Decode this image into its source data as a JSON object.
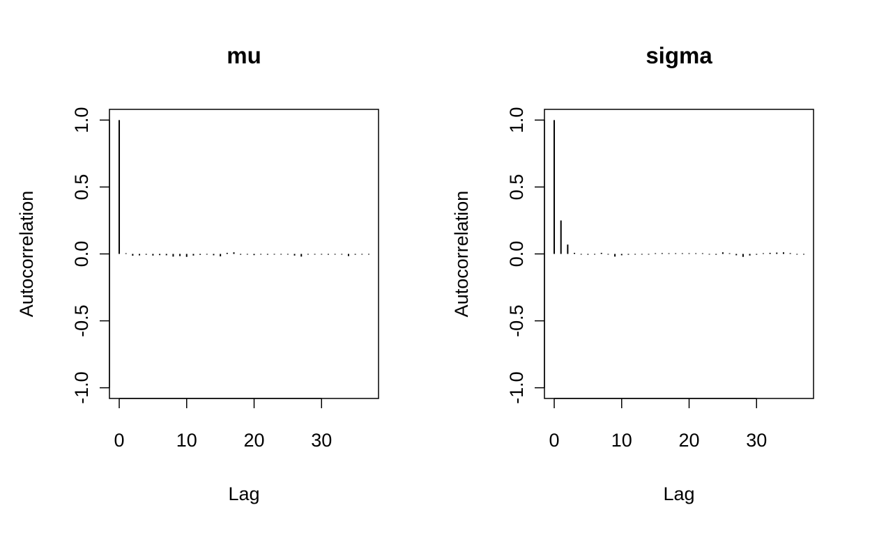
{
  "chart_data": [
    {
      "type": "bar",
      "title": "mu",
      "xlabel": "Lag",
      "ylabel": "Autocorrelation",
      "xlim": [
        -1.45,
        38.45
      ],
      "ylim": [
        -1.08,
        1.08
      ],
      "xticks": [
        0,
        10,
        20,
        30
      ],
      "xtick_labels": [
        "0",
        "10",
        "20",
        "30"
      ],
      "yticks": [
        -1.0,
        -0.5,
        0.0,
        0.5,
        1.0
      ],
      "ytick_labels": [
        "-1.0",
        "-0.5",
        "0.0",
        "0.5",
        "1.0"
      ],
      "grid": false,
      "lags": [
        0,
        1,
        2,
        3,
        4,
        5,
        6,
        7,
        8,
        9,
        10,
        11,
        12,
        13,
        14,
        15,
        16,
        17,
        18,
        19,
        20,
        21,
        22,
        23,
        24,
        25,
        26,
        27,
        28,
        29,
        30,
        31,
        32,
        33,
        34,
        35,
        36,
        37
      ],
      "values": [
        1.0,
        0.004,
        -0.013,
        -0.011,
        -0.006,
        -0.012,
        -0.009,
        -0.01,
        -0.02,
        -0.016,
        -0.022,
        -0.012,
        -0.007,
        -0.005,
        -0.01,
        -0.018,
        0.008,
        0.012,
        -0.006,
        -0.005,
        -0.009,
        -0.004,
        -0.006,
        -0.003,
        -0.005,
        -0.002,
        -0.012,
        -0.02,
        -0.004,
        -0.002,
        -0.003,
        -0.006,
        -0.004,
        -0.002,
        -0.016,
        -0.006,
        -0.004,
        -0.003
      ]
    },
    {
      "type": "bar",
      "title": "sigma",
      "xlabel": "Lag",
      "ylabel": "Autocorrelation",
      "xlim": [
        -1.45,
        38.45
      ],
      "ylim": [
        -1.08,
        1.08
      ],
      "xticks": [
        0,
        10,
        20,
        30
      ],
      "xtick_labels": [
        "0",
        "10",
        "20",
        "30"
      ],
      "yticks": [
        -1.0,
        -0.5,
        0.0,
        0.5,
        1.0
      ],
      "ytick_labels": [
        "-1.0",
        "-0.5",
        "0.0",
        "0.5",
        "1.0"
      ],
      "grid": false,
      "lags": [
        0,
        1,
        2,
        3,
        4,
        5,
        6,
        7,
        8,
        9,
        10,
        11,
        12,
        13,
        14,
        15,
        16,
        17,
        18,
        19,
        20,
        21,
        22,
        23,
        24,
        25,
        26,
        27,
        28,
        29,
        30,
        31,
        32,
        33,
        34,
        35,
        36,
        37
      ],
      "values": [
        1.0,
        0.25,
        0.07,
        0.008,
        -0.004,
        -0.006,
        -0.003,
        0.008,
        -0.005,
        -0.02,
        -0.01,
        -0.006,
        -0.004,
        -0.003,
        -0.002,
        0.004,
        0.006,
        0.004,
        0.003,
        0.004,
        0.003,
        0.002,
        0.003,
        -0.004,
        -0.006,
        0.012,
        0.004,
        -0.01,
        -0.022,
        -0.012,
        -0.006,
        0.003,
        0.008,
        0.01,
        0.012,
        0.006,
        -0.004,
        -0.002
      ]
    }
  ]
}
